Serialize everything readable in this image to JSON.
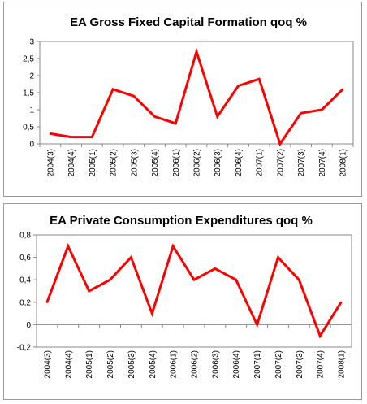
{
  "chart_data": [
    {
      "type": "line",
      "title": "EA Gross Fixed Capital Formation qoq %",
      "xlabel": "",
      "ylabel": "",
      "categories": [
        "2004(3)",
        "2004(4)",
        "2005(1)",
        "2005(2)",
        "2005(3)",
        "2005(4)",
        "2006(1)",
        "2006(2)",
        "2006(3)",
        "2006(4)",
        "2007(1)",
        "2007(2)",
        "2007(3)",
        "2007(4)",
        "2008(1)"
      ],
      "series": [
        {
          "name": "",
          "values": [
            0.3,
            0.2,
            0.2,
            1.6,
            1.4,
            0.8,
            0.6,
            2.7,
            0.8,
            1.7,
            1.9,
            0.0,
            0.9,
            1.0,
            1.6
          ]
        }
      ],
      "ylim": [
        0,
        3
      ],
      "yticks": [
        0,
        0.5,
        1,
        1.5,
        2,
        2.5,
        3
      ],
      "ytick_labels": [
        "0",
        "0,5",
        "1",
        "1,5",
        "2",
        "2,5",
        "3"
      ],
      "grid": false,
      "legend": "none",
      "line_color": "#ff0000"
    },
    {
      "type": "line",
      "title": "EA Private Consumption Expenditures qoq %",
      "xlabel": "",
      "ylabel": "",
      "categories": [
        "2004(3)",
        "2004(4)",
        "2005(1)",
        "2005(2)",
        "2005(3)",
        "2005(4)",
        "2006(1)",
        "2006(2)",
        "2006(3)",
        "2006(4)",
        "2007(1)",
        "2007(2)",
        "2007(3)",
        "2007(4)",
        "2008(1)"
      ],
      "series": [
        {
          "name": "",
          "values": [
            0.2,
            0.7,
            0.3,
            0.4,
            0.6,
            0.1,
            0.7,
            0.4,
            0.5,
            0.4,
            0.0,
            0.6,
            0.4,
            -0.1,
            0.2
          ]
        }
      ],
      "ylim": [
        -0.2,
        0.8
      ],
      "yticks": [
        -0.2,
        0,
        0.2,
        0.4,
        0.6,
        0.8
      ],
      "ytick_labels": [
        "-0,2",
        "0",
        "0,2",
        "0,4",
        "0,6",
        "0,8"
      ],
      "grid": false,
      "legend": "none",
      "line_color": "#ff0000"
    }
  ]
}
